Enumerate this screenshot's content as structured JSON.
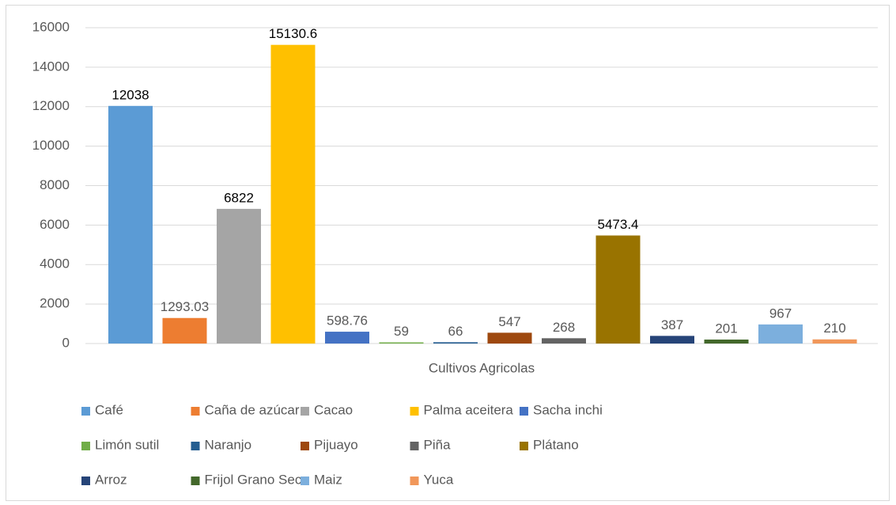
{
  "chart_data": {
    "type": "bar",
    "categories": [
      "Cultivos Agricolas"
    ],
    "series": [
      {
        "name": "Café",
        "color": "#5b9bd5",
        "values": [
          12038
        ]
      },
      {
        "name": "Caña de azúcar",
        "color": "#ed7d31",
        "values": [
          1293.03
        ]
      },
      {
        "name": "Cacao",
        "color": "#a5a5a5",
        "values": [
          6822
        ]
      },
      {
        "name": "Palma aceitera",
        "color": "#ffc000",
        "values": [
          15130.6
        ]
      },
      {
        "name": "Sacha inchi",
        "color": "#4472c4",
        "values": [
          598.76
        ]
      },
      {
        "name": "Limón sutil",
        "color": "#70ad47",
        "values": [
          59
        ]
      },
      {
        "name": "Naranjo",
        "color": "#255e91",
        "values": [
          66
        ]
      },
      {
        "name": "Pijuayo",
        "color": "#9e480e",
        "values": [
          547
        ]
      },
      {
        "name": "Piña",
        "color": "#636363",
        "values": [
          268
        ]
      },
      {
        "name": "Plátano",
        "color": "#997300",
        "values": [
          5473.4
        ]
      },
      {
        "name": "Arroz",
        "color": "#264478",
        "values": [
          387
        ]
      },
      {
        "name": "Frijol Grano Seco",
        "color": "#43682b",
        "values": [
          201
        ]
      },
      {
        "name": "Maiz",
        "color": "#7cafdd",
        "values": [
          967
        ]
      },
      {
        "name": "Yuca",
        "color": "#f1975a",
        "values": [
          210
        ]
      }
    ],
    "ylim": [
      0,
      16000
    ],
    "yticks": [
      0,
      2000,
      4000,
      6000,
      8000,
      10000,
      12000,
      14000,
      16000
    ],
    "grid": true,
    "legend": "bottom"
  }
}
